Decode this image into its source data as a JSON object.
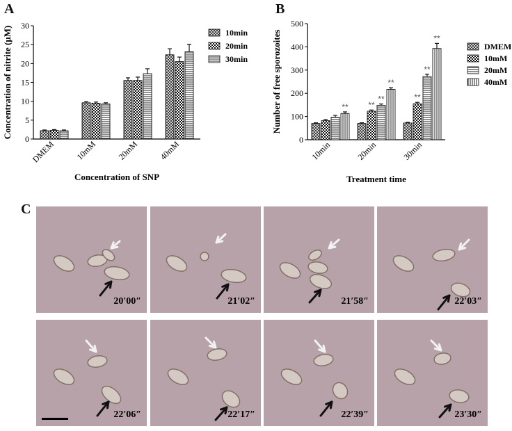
{
  "panels": {
    "a_letter": "A",
    "b_letter": "B",
    "c_letter": "C"
  },
  "colors": {
    "frame_bg": "#b7a2a9",
    "cell": "#d9cfc6",
    "cell_edge": "#7d6a60",
    "white_arrow": "#f2f2f2",
    "black_arrow": "#111111"
  },
  "chart_data": [
    {
      "type": "bar",
      "panel": "A",
      "categories": [
        "DMEM",
        "10mM",
        "20mM",
        "40mM"
      ],
      "series": [
        {
          "name": "10min",
          "pattern": "crosshatch",
          "values": [
            2.2,
            9.6,
            15.5,
            22.3
          ],
          "errors": [
            0.2,
            0.3,
            0.7,
            1.6
          ]
        },
        {
          "name": "20min",
          "pattern": "checker",
          "values": [
            2.3,
            9.5,
            15.5,
            20.5
          ],
          "errors": [
            0.2,
            0.3,
            0.9,
            1.2
          ]
        },
        {
          "name": "30min",
          "pattern": "horizontal",
          "values": [
            2.2,
            9.3,
            17.3,
            23.1
          ],
          "errors": [
            0.2,
            0.3,
            1.3,
            2.0
          ]
        }
      ],
      "xlabel": "Concentration of SNP",
      "ylabel": "Concentration of nitrite (μM)",
      "ylim": [
        0,
        30
      ],
      "yticks": [
        0,
        5,
        10,
        15,
        20,
        25,
        30
      ],
      "legend": "top-right"
    },
    {
      "type": "bar",
      "panel": "B",
      "categories": [
        "10min",
        "20min",
        "30min"
      ],
      "series": [
        {
          "name": "DMEM",
          "pattern": "crosshatch",
          "values": [
            70,
            70,
            72
          ],
          "errors": [
            3,
            3,
            3
          ],
          "sig": [
            "",
            "",
            ""
          ]
        },
        {
          "name": "10mM",
          "pattern": "checker",
          "values": [
            82,
            123,
            155
          ],
          "errors": [
            5,
            5,
            6
          ],
          "sig": [
            "",
            "**",
            "**"
          ]
        },
        {
          "name": "20mM",
          "pattern": "horizontal",
          "values": [
            97,
            148,
            272
          ],
          "errors": [
            8,
            6,
            10
          ],
          "sig": [
            "",
            "**",
            "**"
          ]
        },
        {
          "name": "40mM",
          "pattern": "vertical",
          "values": [
            113,
            217,
            393
          ],
          "errors": [
            7,
            7,
            22
          ],
          "sig": [
            "**",
            "**",
            "**"
          ]
        }
      ],
      "xlabel": "Treatment time",
      "ylabel": "Number of free sporozoites",
      "ylim": [
        0,
        500
      ],
      "yticks": [
        0,
        100,
        200,
        300,
        400,
        500
      ],
      "legend": "right"
    }
  ],
  "micrographs": {
    "timestamps": [
      "20′00″",
      "21′02″",
      "21′58″",
      "22′03″",
      "22′06″",
      "22′17″",
      "22′39″",
      "23′30″"
    ]
  }
}
